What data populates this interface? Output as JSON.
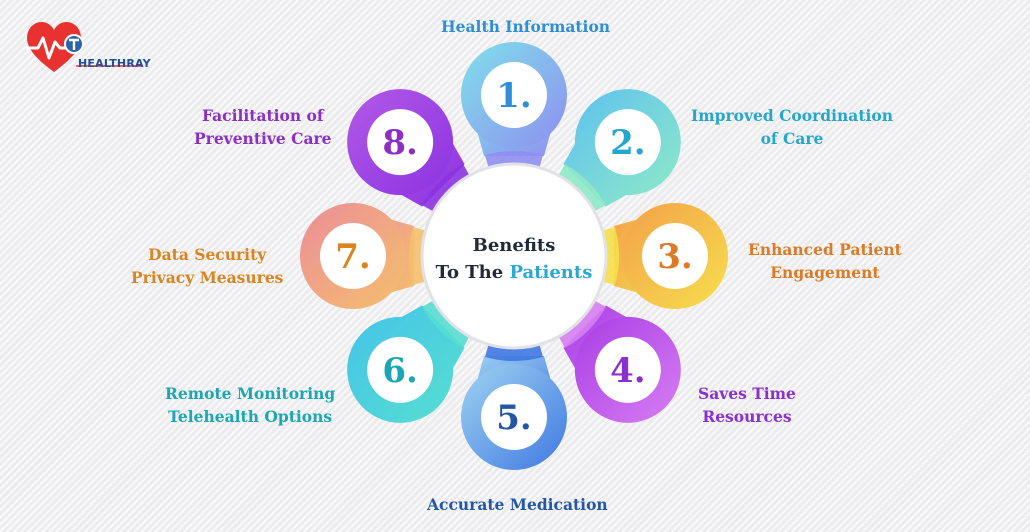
{
  "brand": {
    "name": "HEALTHRAY",
    "heart_color": "#e8322f",
    "badge_color": "#2b63ad"
  },
  "center": {
    "line1": "Benefits",
    "line2_prefix": "To The",
    "line2_highlight": "Patients"
  },
  "items": [
    {
      "number": "1.",
      "lines": [
        "Health Information"
      ],
      "color": "#2e8fd6",
      "gradient": [
        "#7fe0ea",
        "#8f8ff0"
      ]
    },
    {
      "number": "2.",
      "lines": [
        "Improved Coordination",
        "of Care"
      ],
      "color": "#25a6cd",
      "gradient": [
        "#5fc2ef",
        "#8ee9c7"
      ]
    },
    {
      "number": "3.",
      "lines": [
        "Enhanced Patient",
        "Engagement"
      ],
      "color": "#dc7a25",
      "gradient": [
        "#f3a14a",
        "#f6df4d"
      ]
    },
    {
      "number": "4.",
      "lines": [
        "Saves Time",
        "Resources"
      ],
      "color": "#8a2fd0",
      "gradient": [
        "#a93de6",
        "#d77ff2"
      ]
    },
    {
      "number": "5.",
      "lines": [
        "Accurate Medication"
      ],
      "color": "#2456a8",
      "gradient": [
        "#9fd3f1",
        "#3f78e2"
      ]
    },
    {
      "number": "6.",
      "lines": [
        "Remote Monitoring",
        "Telehealth Options"
      ],
      "color": "#1aa6b3",
      "gradient": [
        "#45c4e8",
        "#56ded1"
      ]
    },
    {
      "number": "7.",
      "lines": [
        "Data Security",
        "Privacy Measures"
      ],
      "color": "#d9841f",
      "gradient": [
        "#ec8d9a",
        "#f4c06c"
      ]
    },
    {
      "number": "8.",
      "lines": [
        "Facilitation of",
        "Preventive Care"
      ],
      "color": "#8c2fc4",
      "gradient": [
        "#b25ae8",
        "#8b33e0"
      ]
    }
  ]
}
